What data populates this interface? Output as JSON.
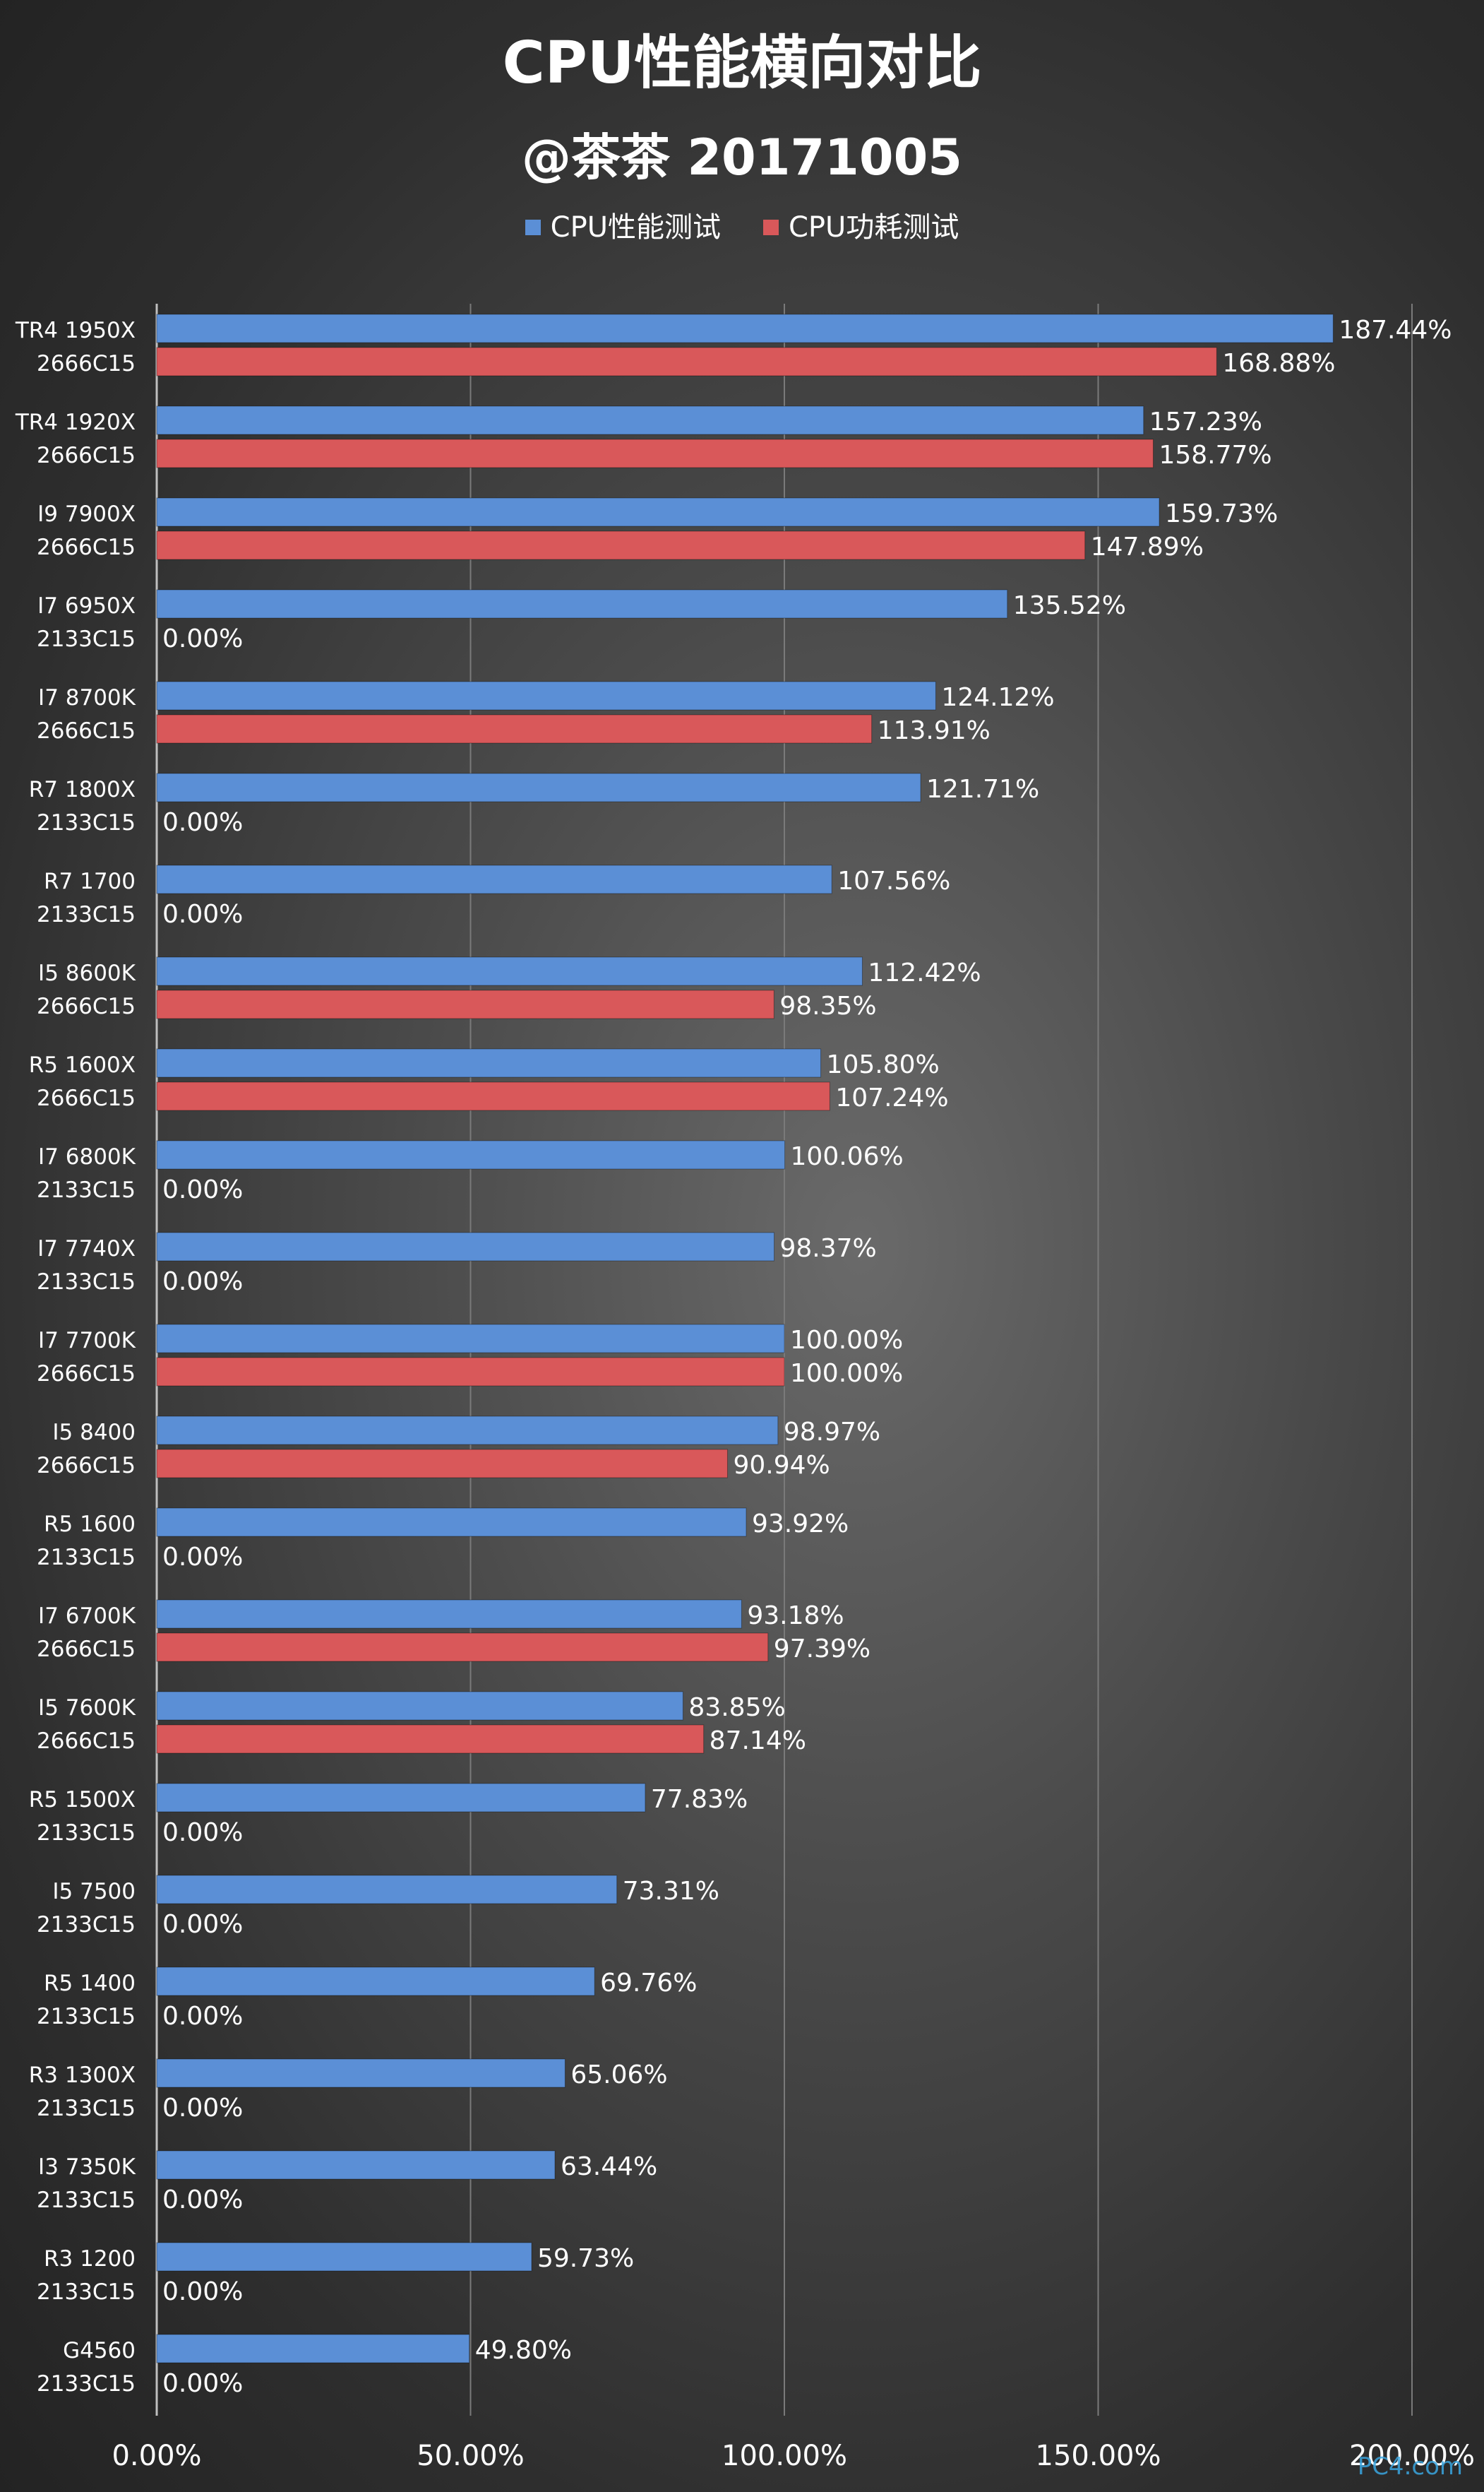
{
  "header": {
    "title": "CPU性能横向对比",
    "subtitle": "@茶茶 20171005"
  },
  "watermark": "PC4.com",
  "colors": {
    "perf": "#5b8fd6",
    "power": "#d9585a",
    "grid": "#7a7a7a"
  },
  "chart_data": {
    "type": "bar",
    "orientation": "horizontal",
    "legend_position": "top",
    "grid": true,
    "xlim": [
      0,
      200
    ],
    "x_ticks": [
      "0.00%",
      "50.00%",
      "100.00%",
      "150.00%",
      "200.00%"
    ],
    "categories": [
      {
        "cpu": "TR4 1950X",
        "memory": "2666C15"
      },
      {
        "cpu": "TR4 1920X",
        "memory": "2666C15"
      },
      {
        "cpu": "I9 7900X",
        "memory": "2666C15"
      },
      {
        "cpu": "I7 6950X",
        "memory": "2133C15"
      },
      {
        "cpu": "I7 8700K",
        "memory": "2666C15"
      },
      {
        "cpu": "R7 1800X",
        "memory": "2133C15"
      },
      {
        "cpu": "R7 1700",
        "memory": "2133C15"
      },
      {
        "cpu": "I5 8600K",
        "memory": "2666C15"
      },
      {
        "cpu": "R5 1600X",
        "memory": "2666C15"
      },
      {
        "cpu": "I7 6800K",
        "memory": "2133C15"
      },
      {
        "cpu": "I7 7740X",
        "memory": "2133C15"
      },
      {
        "cpu": "I7 7700K",
        "memory": "2666C15"
      },
      {
        "cpu": "I5 8400",
        "memory": "2666C15"
      },
      {
        "cpu": "R5 1600",
        "memory": "2133C15"
      },
      {
        "cpu": "I7 6700K",
        "memory": "2666C15"
      },
      {
        "cpu": "I5 7600K",
        "memory": "2666C15"
      },
      {
        "cpu": "R5 1500X",
        "memory": "2133C15"
      },
      {
        "cpu": "I5 7500",
        "memory": "2133C15"
      },
      {
        "cpu": "R5 1400",
        "memory": "2133C15"
      },
      {
        "cpu": "R3 1300X",
        "memory": "2133C15"
      },
      {
        "cpu": "I3 7350K",
        "memory": "2133C15"
      },
      {
        "cpu": "R3 1200",
        "memory": "2133C15"
      },
      {
        "cpu": "G4560",
        "memory": "2133C15"
      }
    ],
    "series": [
      {
        "name": "CPU性能测试",
        "values": [
          187.44,
          157.23,
          159.73,
          135.52,
          124.12,
          121.71,
          107.56,
          112.42,
          105.8,
          100.06,
          98.37,
          100.0,
          98.97,
          93.92,
          93.18,
          83.85,
          77.83,
          73.31,
          69.76,
          65.06,
          63.44,
          59.73,
          49.8
        ],
        "labels": [
          "187.44%",
          "157.23%",
          "159.73%",
          "135.52%",
          "124.12%",
          "121.71%",
          "107.56%",
          "112.42%",
          "105.80%",
          "100.06%",
          "98.37%",
          "100.00%",
          "98.97%",
          "93.92%",
          "93.18%",
          "83.85%",
          "77.83%",
          "73.31%",
          "69.76%",
          "65.06%",
          "63.44%",
          "59.73%",
          "49.80%"
        ]
      },
      {
        "name": "CPU功耗测试",
        "values": [
          168.88,
          158.77,
          147.89,
          0,
          113.91,
          0,
          0,
          98.35,
          107.24,
          0,
          0,
          100.0,
          90.94,
          0,
          97.39,
          87.14,
          0,
          0,
          0,
          0,
          0,
          0,
          0
        ],
        "labels": [
          "168.88%",
          "158.77%",
          "147.89%",
          "0.00%",
          "113.91%",
          "0.00%",
          "0.00%",
          "98.35%",
          "107.24%",
          "0.00%",
          "0.00%",
          "100.00%",
          "90.94%",
          "0.00%",
          "97.39%",
          "87.14%",
          "0.00%",
          "0.00%",
          "0.00%",
          "0.00%",
          "0.00%",
          "0.00%",
          "0.00%"
        ]
      }
    ]
  }
}
